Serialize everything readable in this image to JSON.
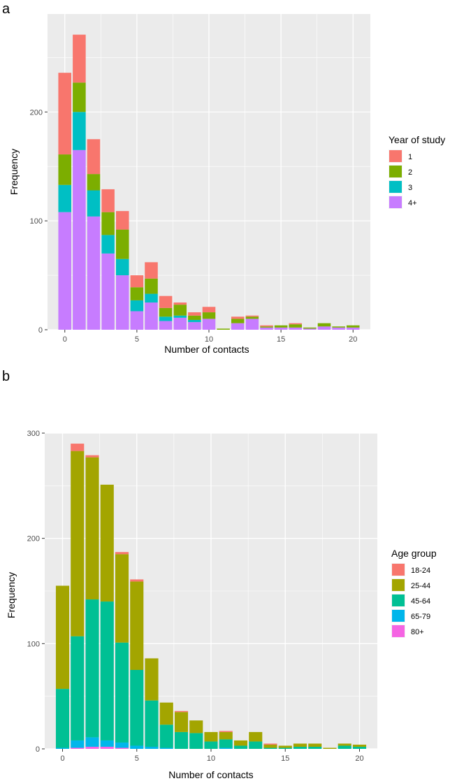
{
  "colors": {
    "panel_background": "#ebebeb",
    "gridline": "#ffffff",
    "tick_text": "#4d4d4d",
    "label_text": "#000000"
  },
  "chart_data": [
    {
      "type": "bar",
      "stacked": true,
      "panel_label": "a",
      "xlabel": "Number of contacts",
      "ylabel": "Frequency",
      "x": [
        0,
        1,
        2,
        3,
        4,
        5,
        6,
        7,
        8,
        9,
        10,
        11,
        12,
        13,
        14,
        15,
        16,
        17,
        18,
        19,
        20
      ],
      "xlim": [
        -1.2,
        21.2
      ],
      "ylim": [
        0,
        290
      ],
      "x_ticks": [
        0,
        5,
        10,
        15,
        20
      ],
      "y_ticks": [
        0,
        100,
        200
      ],
      "legend": {
        "title": "Year of study",
        "position": "right"
      },
      "series": [
        {
          "name": "4+",
          "color": "#c77cff",
          "values": [
            108,
            165,
            104,
            70,
            50,
            17,
            25,
            8,
            11,
            7,
            10,
            0,
            6,
            10,
            2,
            2,
            2,
            1,
            3,
            2,
            2
          ]
        },
        {
          "name": "3",
          "color": "#00bfc4",
          "values": [
            25,
            35,
            24,
            17,
            15,
            10,
            8,
            4,
            2,
            2,
            0,
            0,
            0,
            0,
            0,
            0,
            0,
            0,
            0,
            0,
            0
          ]
        },
        {
          "name": "2",
          "color": "#7cae00",
          "values": [
            28,
            27,
            15,
            21,
            27,
            12,
            14,
            8,
            10,
            4,
            6,
            1,
            4,
            2,
            1,
            2,
            3,
            1,
            3,
            1,
            2
          ]
        },
        {
          "name": "1",
          "color": "#f8766d",
          "values": [
            75,
            44,
            32,
            21,
            17,
            11,
            15,
            11,
            2,
            3,
            5,
            0,
            2,
            1,
            1,
            0,
            1,
            0,
            0,
            0,
            0
          ]
        }
      ]
    },
    {
      "type": "bar",
      "stacked": true,
      "panel_label": "b",
      "xlabel": "Number of contacts",
      "ylabel": "Frequency",
      "x": [
        0,
        1,
        2,
        3,
        4,
        5,
        6,
        7,
        8,
        9,
        10,
        11,
        12,
        13,
        14,
        15,
        16,
        17,
        18,
        19,
        20
      ],
      "xlim": [
        -1.2,
        21.2
      ],
      "ylim": [
        0,
        300
      ],
      "x_ticks": [
        0,
        5,
        10,
        15,
        20
      ],
      "y_ticks": [
        0,
        100,
        200,
        300
      ],
      "legend": {
        "title": "Age group",
        "position": "right"
      },
      "series": [
        {
          "name": "80+",
          "color": "#f564e3",
          "values": [
            0,
            1,
            2,
            2,
            1,
            0,
            0,
            0,
            0,
            0,
            0,
            0,
            0,
            0,
            0,
            0,
            0,
            0,
            0,
            0,
            0
          ]
        },
        {
          "name": "65-79",
          "color": "#00b6eb",
          "values": [
            1,
            7,
            9,
            6,
            5,
            3,
            2,
            1,
            0,
            0,
            0,
            1,
            0,
            0,
            0,
            0,
            0,
            0,
            0,
            0,
            0
          ]
        },
        {
          "name": "45-64",
          "color": "#00c094",
          "values": [
            56,
            99,
            131,
            132,
            95,
            72,
            44,
            22,
            16,
            15,
            7,
            8,
            3,
            7,
            1,
            1,
            2,
            2,
            0,
            3,
            2
          ]
        },
        {
          "name": "25-44",
          "color": "#a3a500",
          "values": [
            98,
            176,
            135,
            111,
            84,
            84,
            40,
            21,
            19,
            12,
            9,
            7,
            5,
            9,
            3,
            2,
            3,
            3,
            1,
            2,
            2
          ]
        },
        {
          "name": "18-24",
          "color": "#f8766d",
          "values": [
            0,
            7,
            2,
            0,
            2,
            2,
            0,
            0,
            1,
            0,
            0,
            1,
            0,
            0,
            1,
            0,
            0,
            0,
            0,
            0,
            0
          ]
        }
      ]
    }
  ]
}
